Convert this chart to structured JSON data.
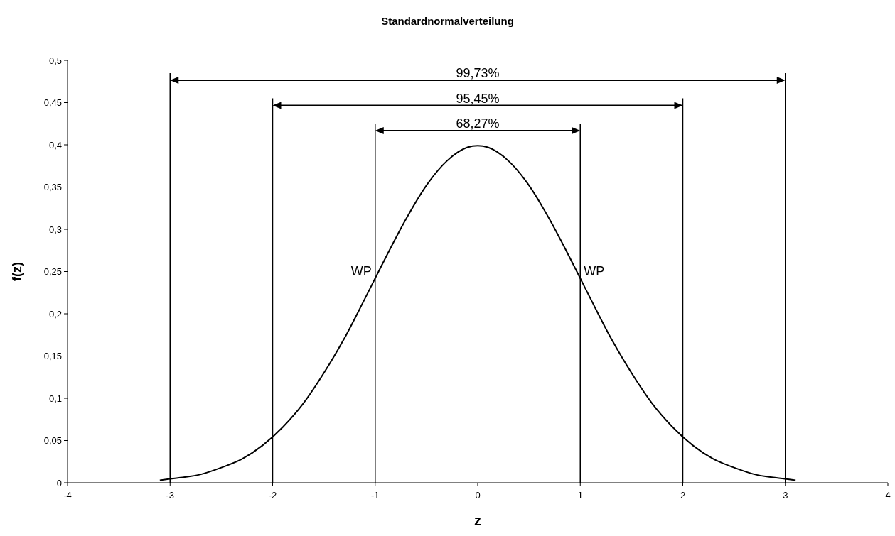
{
  "chart_data": {
    "type": "line",
    "title": "Standardnormalverteilung",
    "xlabel": "z",
    "ylabel": "f(z)",
    "x": [
      -3.1,
      -2.9,
      -2.7,
      -2.5,
      -2.3,
      -2.1,
      -1.9,
      -1.7,
      -1.5,
      -1.3,
      -1.1,
      -1,
      -0.9,
      -0.7,
      -0.5,
      -0.3,
      -0.1,
      0,
      0.1,
      0.3,
      0.5,
      0.7,
      0.9,
      1,
      1.1,
      1.3,
      1.5,
      1.7,
      1.9,
      2.1,
      2.3,
      2.5,
      2.7,
      2.9,
      3.1
    ],
    "series": [
      {
        "color": "#000000",
        "values": [
          0.003,
          0.006,
          0.01,
          0.018,
          0.028,
          0.044,
          0.066,
          0.094,
          0.13,
          0.171,
          0.218,
          0.242,
          0.266,
          0.312,
          0.352,
          0.381,
          0.397,
          0.399,
          0.397,
          0.381,
          0.352,
          0.312,
          0.266,
          0.242,
          0.218,
          0.171,
          0.13,
          0.094,
          0.066,
          0.044,
          0.028,
          0.018,
          0.01,
          0.006,
          0.003
        ]
      }
    ],
    "xlim": [
      -4,
      4
    ],
    "xticks": [
      -4,
      -3,
      -2,
      -1,
      0,
      1,
      2,
      3,
      4
    ],
    "ylim": [
      0,
      0.5
    ],
    "yticks": [
      0,
      {
        "value": 0.05,
        "label": "0,05"
      },
      {
        "value": 0.1,
        "label": "0,1"
      },
      {
        "value": 0.15,
        "label": "0,15"
      },
      {
        "value": 0.2,
        "label": "0,2"
      },
      {
        "value": 0.25,
        "label": "0,25"
      },
      {
        "value": 0.3,
        "label": "0,3"
      },
      {
        "value": 0.35,
        "label": "0,35"
      },
      {
        "value": 0.4,
        "label": "0,4"
      },
      {
        "value": 0.45,
        "label": "0,45"
      },
      {
        "value": 0.5,
        "label": "0,5"
      }
    ],
    "ref_lines": [
      {
        "axis": "x",
        "value": -3
      },
      {
        "axis": "x",
        "value": 3
      },
      {
        "axis": "x",
        "value": -2
      },
      {
        "axis": "x",
        "value": 2
      },
      {
        "axis": "x",
        "value": -1
      },
      {
        "axis": "x",
        "value": 1
      }
    ],
    "annotations": [
      "99,73%",
      "95,45%",
      "68,27%",
      {
        "text": "WP",
        "x": -1,
        "y": 0.242
      },
      {
        "text": "WP",
        "x": 1,
        "y": 0.242
      }
    ],
    "grid": false,
    "marker": "none",
    "line_style": "solid"
  }
}
